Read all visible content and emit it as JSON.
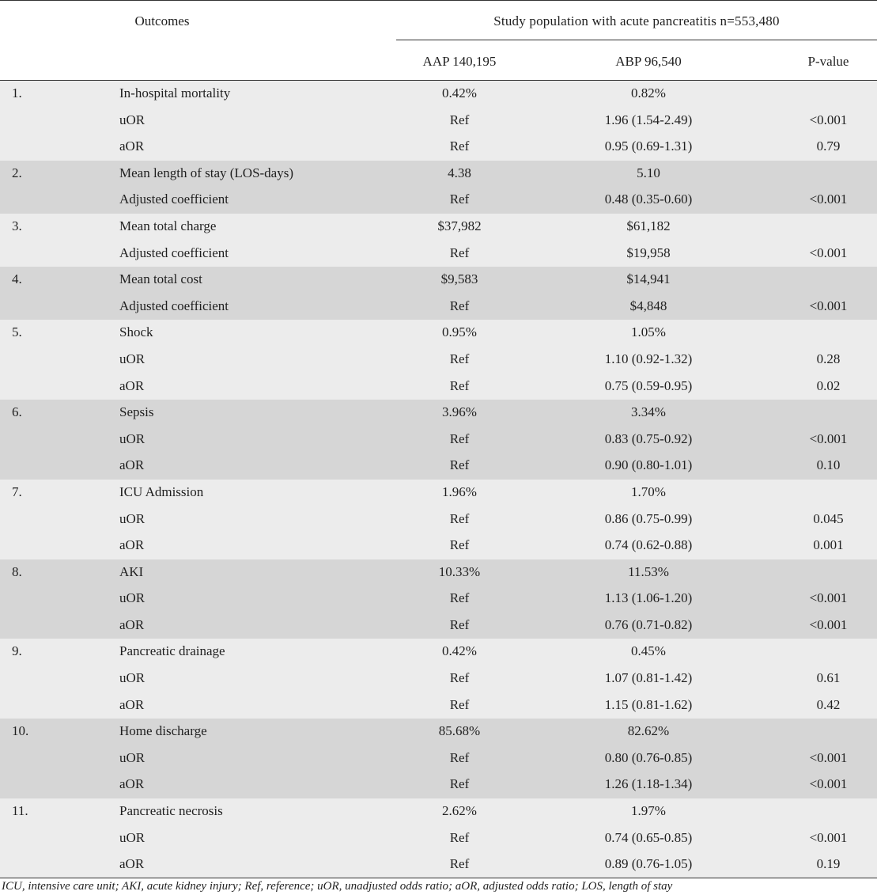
{
  "header": {
    "outcomes": "Outcomes",
    "study_population": "Study population with acute pancreatitis n=553,480",
    "col_aap": "AAP 140,195",
    "col_abp": "ABP 96,540",
    "col_p": "P-value"
  },
  "groups": [
    {
      "num": "1.",
      "rows": [
        {
          "label": "In-hospital mortality",
          "aap": "0.42%",
          "abp": "0.82%",
          "p": ""
        },
        {
          "label": "uOR",
          "aap": "Ref",
          "abp": "1.96 (1.54-2.49)",
          "p": "<0.001"
        },
        {
          "label": "aOR",
          "aap": "Ref",
          "abp": "0.95 (0.69-1.31)",
          "p": "0.79"
        }
      ]
    },
    {
      "num": "2.",
      "rows": [
        {
          "label": "Mean length of stay (LOS-days)",
          "aap": "4.38",
          "abp": "5.10",
          "p": ""
        },
        {
          "label": "Adjusted coefficient",
          "aap": "Ref",
          "abp": "0.48 (0.35-0.60)",
          "p": "<0.001"
        }
      ]
    },
    {
      "num": "3.",
      "rows": [
        {
          "label": "Mean total charge",
          "aap": "$37,982",
          "abp": "$61,182",
          "p": ""
        },
        {
          "label": "Adjusted coefficient",
          "aap": "Ref",
          "abp": "$19,958",
          "p": "<0.001"
        }
      ]
    },
    {
      "num": "4.",
      "rows": [
        {
          "label": "Mean total cost",
          "aap": "$9,583",
          "abp": "$14,941",
          "p": ""
        },
        {
          "label": "Adjusted coefficient",
          "aap": "Ref",
          "abp": "$4,848",
          "p": "<0.001"
        }
      ]
    },
    {
      "num": "5.",
      "rows": [
        {
          "label": "Shock",
          "aap": "0.95%",
          "abp": "1.05%",
          "p": ""
        },
        {
          "label": "uOR",
          "aap": "Ref",
          "abp": "1.10 (0.92-1.32)",
          "p": "0.28"
        },
        {
          "label": "aOR",
          "aap": "Ref",
          "abp": "0.75 (0.59-0.95)",
          "p": "0.02"
        }
      ]
    },
    {
      "num": "6.",
      "rows": [
        {
          "label": "Sepsis",
          "aap": "3.96%",
          "abp": "3.34%",
          "p": ""
        },
        {
          "label": "uOR",
          "aap": "Ref",
          "abp": "0.83 (0.75-0.92)",
          "p": "<0.001"
        },
        {
          "label": "aOR",
          "aap": "Ref",
          "abp": "0.90 (0.80-1.01)",
          "p": "0.10"
        }
      ]
    },
    {
      "num": "7.",
      "rows": [
        {
          "label": "ICU Admission",
          "aap": "1.96%",
          "abp": "1.70%",
          "p": ""
        },
        {
          "label": "uOR",
          "aap": "Ref",
          "abp": "0.86 (0.75-0.99)",
          "p": "0.045"
        },
        {
          "label": "aOR",
          "aap": "Ref",
          "abp": "0.74 (0.62-0.88)",
          "p": "0.001"
        }
      ]
    },
    {
      "num": "8.",
      "rows": [
        {
          "label": "AKI",
          "aap": "10.33%",
          "abp": "11.53%",
          "p": ""
        },
        {
          "label": "uOR",
          "aap": "Ref",
          "abp": "1.13 (1.06-1.20)",
          "p": "<0.001"
        },
        {
          "label": "aOR",
          "aap": "Ref",
          "abp": "0.76 (0.71-0.82)",
          "p": "<0.001"
        }
      ]
    },
    {
      "num": "9.",
      "rows": [
        {
          "label": "Pancreatic drainage",
          "aap": "0.42%",
          "abp": "0.45%",
          "p": ""
        },
        {
          "label": "uOR",
          "aap": "Ref",
          "abp": "1.07 (0.81-1.42)",
          "p": "0.61"
        },
        {
          "label": "aOR",
          "aap": "Ref",
          "abp": "1.15 (0.81-1.62)",
          "p": "0.42"
        }
      ]
    },
    {
      "num": "10.",
      "rows": [
        {
          "label": "Home discharge",
          "aap": "85.68%",
          "abp": "82.62%",
          "p": ""
        },
        {
          "label": "uOR",
          "aap": "Ref",
          "abp": "0.80 (0.76-0.85)",
          "p": "<0.001"
        },
        {
          "label": "aOR",
          "aap": "Ref",
          "abp": "1.26 (1.18-1.34)",
          "p": "<0.001"
        }
      ]
    },
    {
      "num": "11.",
      "rows": [
        {
          "label": "Pancreatic necrosis",
          "aap": "2.62%",
          "abp": "1.97%",
          "p": ""
        },
        {
          "label": "uOR",
          "aap": "Ref",
          "abp": "0.74 (0.65-0.85)",
          "p": "<0.001"
        },
        {
          "label": "aOR",
          "aap": "Ref",
          "abp": "0.89 (0.76-1.05)",
          "p": "0.19"
        }
      ]
    }
  ],
  "footnote": "ICU, intensive care unit; AKI, acute kidney injury; Ref, reference; uOR, unadjusted odds ratio; aOR, adjusted odds ratio; LOS, length of stay",
  "colors": {
    "row_light": "#ececec",
    "row_dark": "#d6d6d6",
    "rule": "#333333"
  }
}
